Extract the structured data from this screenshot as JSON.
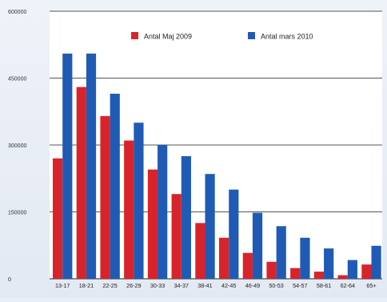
{
  "chart_data": {
    "type": "bar",
    "title": "",
    "xlabel": "",
    "ylabel": "",
    "categories": [
      "13-17",
      "18-21",
      "22-25",
      "26-29",
      "30-33",
      "34-37",
      "38-41",
      "42-45",
      "46-49",
      "50-53",
      "54-57",
      "58-61",
      "62-64",
      "65+"
    ],
    "series": [
      {
        "name": "Antal Maj 2009",
        "color": "#d9232a",
        "values": [
          270000,
          430000,
          365000,
          310000,
          245000,
          190000,
          125000,
          92000,
          58000,
          38000,
          24000,
          16000,
          8000,
          32000
        ]
      },
      {
        "name": "Antal mars 2010",
        "color": "#1f5bb5",
        "values": [
          505000,
          505000,
          415000,
          350000,
          300000,
          275000,
          235000,
          200000,
          148000,
          118000,
          92000,
          68000,
          42000,
          74000
        ]
      }
    ],
    "ylim": [
      0,
      600000
    ],
    "yticks": [
      0,
      150000,
      300000,
      450000,
      600000
    ],
    "grid": true,
    "legend_position": "top-center"
  }
}
